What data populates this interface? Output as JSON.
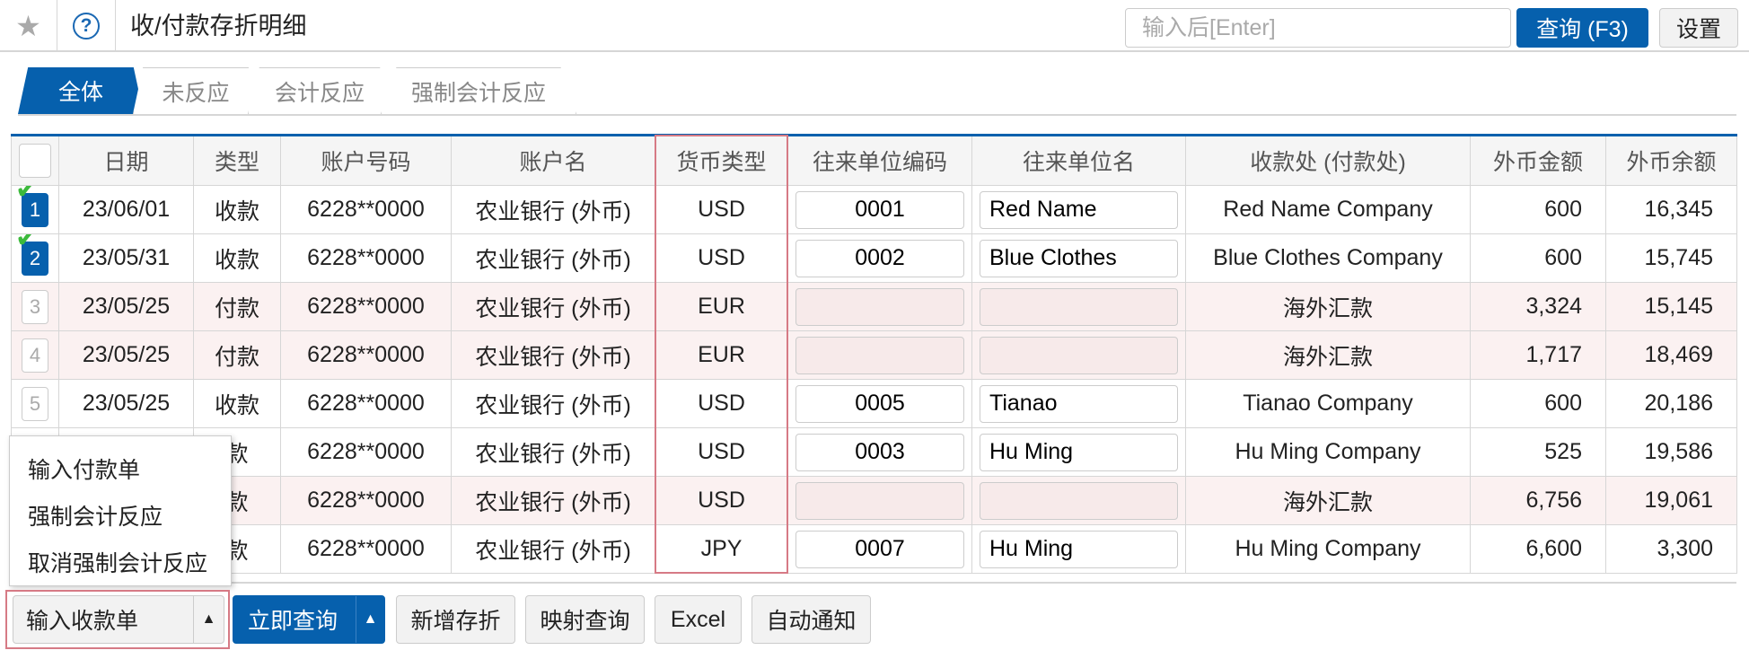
{
  "header": {
    "title": "收/付款存折明细",
    "search_placeholder": "输入后[Enter]",
    "query_button": "查询 (F3)",
    "settings_button": "设置"
  },
  "tabs": [
    {
      "label": "全体",
      "active": true
    },
    {
      "label": "未反应"
    },
    {
      "label": "会计反应"
    },
    {
      "label": "强制会计反应"
    }
  ],
  "table": {
    "columns": [
      "日期",
      "类型",
      "账户号码",
      "账户名",
      "货币类型",
      "往来单位编码",
      "往来单位名",
      "收款处 (付款处)",
      "外币金额",
      "外币余额"
    ],
    "rows": [
      {
        "no": "1",
        "checked": true,
        "date": "23/06/01",
        "type": "收款",
        "account": "6228**0000",
        "name": "农业银行 (外币)",
        "currency": "USD",
        "code": "0001",
        "partner": "Red Name",
        "payee": "Red Name Company",
        "amount": "600",
        "balance": "16,345"
      },
      {
        "no": "2",
        "checked": true,
        "date": "23/05/31",
        "type": "收款",
        "account": "6228**0000",
        "name": "农业银行 (外币)",
        "currency": "USD",
        "code": "0002",
        "partner": "Blue Clothes",
        "payee": "Blue Clothes Company",
        "amount": "600",
        "balance": "15,745"
      },
      {
        "no": "3",
        "pink": true,
        "date": "23/05/25",
        "type": "付款",
        "account": "6228**0000",
        "name": "农业银行 (外币)",
        "currency": "EUR",
        "code": "",
        "partner": "",
        "payee": "海外汇款",
        "amount": "3,324",
        "balance": "15,145"
      },
      {
        "no": "4",
        "pink": true,
        "date": "23/05/25",
        "type": "付款",
        "account": "6228**0000",
        "name": "农业银行 (外币)",
        "currency": "EUR",
        "code": "",
        "partner": "",
        "payee": "海外汇款",
        "amount": "1,717",
        "balance": "18,469"
      },
      {
        "no": "5",
        "date": "23/05/25",
        "type": "收款",
        "account": "6228**0000",
        "name": "农业银行 (外币)",
        "currency": "USD",
        "code": "0005",
        "partner": "Tianao",
        "payee": "Tianao Company",
        "amount": "600",
        "balance": "20,186"
      },
      {
        "no": "",
        "date": "",
        "type": "款",
        "account": "6228**0000",
        "name": "农业银行 (外币)",
        "currency": "USD",
        "code": "0003",
        "partner": "Hu Ming",
        "payee": "Hu Ming Company",
        "amount": "525",
        "balance": "19,586"
      },
      {
        "no": "",
        "pink": true,
        "date": "",
        "type": "款",
        "account": "6228**0000",
        "name": "农业银行 (外币)",
        "currency": "USD",
        "code": "",
        "partner": "",
        "payee": "海外汇款",
        "amount": "6,756",
        "balance": "19,061"
      },
      {
        "no": "",
        "date": "",
        "type": "款",
        "account": "6228**0000",
        "name": "农业银行 (外币)",
        "currency": "JPY",
        "code": "0007",
        "partner": "Hu Ming",
        "payee": "Hu Ming Company",
        "amount": "6,600",
        "balance": "3,300"
      }
    ]
  },
  "dropdown_menu": [
    "输入付款单",
    "强制会计反应",
    "取消强制会计反应"
  ],
  "footer": {
    "input_receipt": "输入收款单",
    "query_now": "立即查询",
    "add_passbook": "新增存折",
    "mapping_query": "映射查询",
    "excel": "Excel",
    "auto_notify": "自动通知"
  },
  "colors": {
    "accent": "#0660ad",
    "highlight": "#d67a85",
    "pink_row": "#fbf1f1"
  }
}
